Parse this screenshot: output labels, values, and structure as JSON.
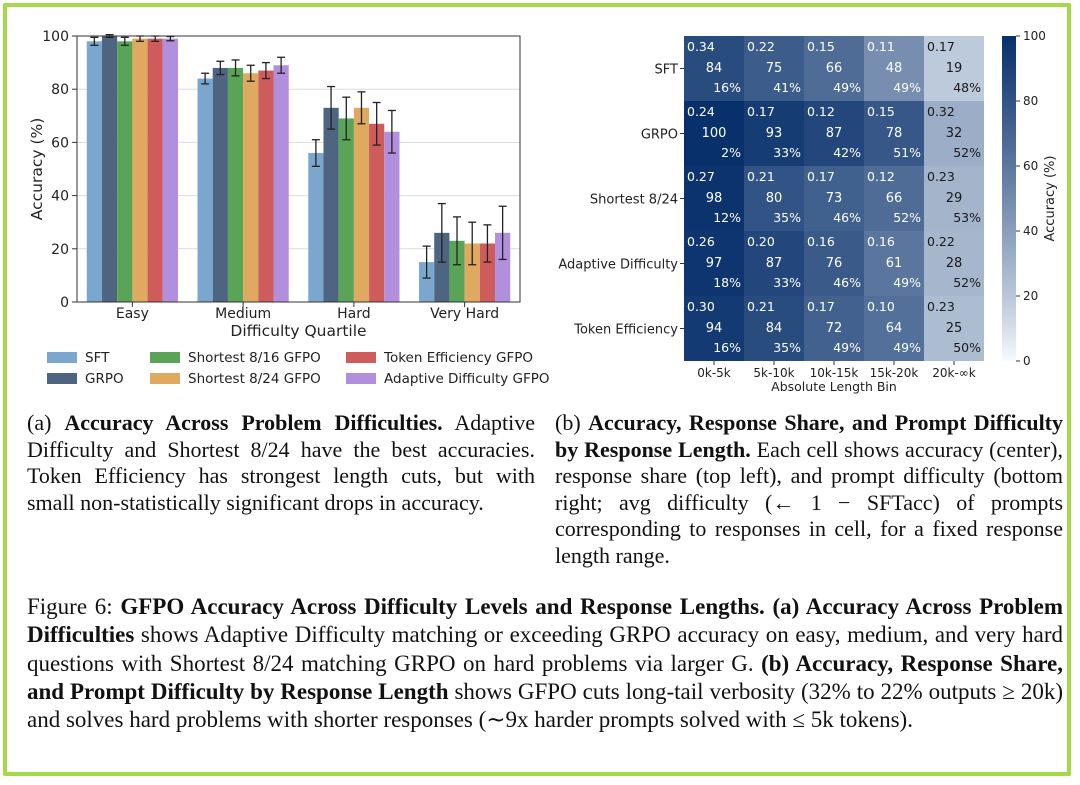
{
  "left_chart": {
    "ylabel": "Accuracy (%)",
    "xlabel": "Difficulty Quartile",
    "yticks": [
      "0",
      "20",
      "40",
      "60",
      "80",
      "100"
    ]
  },
  "heatmap": {
    "xlabel": "Absolute Length Bin",
    "colorbar_label": "Accuracy (%)",
    "colorbar_ticks": [
      "0",
      "20",
      "40",
      "60",
      "80",
      "100"
    ]
  },
  "caption_a": {
    "label": "(a) ",
    "title": "Accuracy Across Problem Difficulties.",
    "text": " Adaptive Difficulty and Shortest 8/24 have the best accuracies. Token Efficiency has strongest length cuts, but with small non-statistically significant drops in accuracy."
  },
  "caption_b": {
    "label": "(b) ",
    "title": "Accuracy, Response Share, and Prompt Difficulty by Response Length.",
    "text": " Each cell shows accuracy (center), response share (top left), and prompt difficulty (bottom right; avg difficulty (← 1 − SFTacc) of prompts corresponding to responses in cell, for a fixed response length range."
  },
  "figure_caption": {
    "label": "Figure 6: ",
    "title": "GFPO Accuracy Across Difficulty Levels and Response Lengths.",
    "part_a_title": " (a) Accuracy Across Problem Difficulties",
    "part_a_text": " shows Adaptive Difficulty matching or exceeding GRPO accuracy on easy, medium, and very hard questions with Shortest 8/24 matching GRPO on hard problems via larger G.",
    "part_b_title": " (b) Accuracy, Response Share, and Prompt Difficulty by Response Length",
    "part_b_text": " shows GFPO cuts long-tail verbosity (32% to 22% outputs ≥ 20k) and solves hard problems with shorter responses (∼9x harder prompts solved with ≤ 5k tokens)."
  },
  "chart_data": [
    {
      "type": "bar",
      "categories": [
        "Easy",
        "Medium",
        "Hard",
        "Very Hard"
      ],
      "ylabel": "Accuracy (%)",
      "xlabel": "Difficulty Quartile",
      "ylim": [
        0,
        100
      ],
      "grid": true,
      "legend_position": "bottom",
      "series": [
        {
          "name": "SFT",
          "color": "#7ba7cf",
          "values": [
            98,
            84,
            56,
            15
          ],
          "err": [
            1.5,
            2,
            5,
            6
          ]
        },
        {
          "name": "GRPO",
          "color": "#4d6580",
          "values": [
            100,
            88,
            73,
            26
          ],
          "err": [
            0.5,
            2.5,
            8,
            11
          ]
        },
        {
          "name": "Shortest 8/16 GFPO",
          "color": "#5aa457",
          "values": [
            98,
            88,
            69,
            23
          ],
          "err": [
            1.5,
            3,
            8,
            9
          ]
        },
        {
          "name": "Shortest 8/24 GFPO",
          "color": "#dfa95f",
          "values": [
            99,
            86,
            73,
            22
          ],
          "err": [
            1,
            3,
            6,
            8
          ]
        },
        {
          "name": "Token Efficiency GFPO",
          "color": "#cf5c5c",
          "values": [
            99,
            87,
            67,
            22
          ],
          "err": [
            1,
            3,
            8,
            7
          ]
        },
        {
          "name": "Adaptive Difficulty GFPO",
          "color": "#b28fdc",
          "values": [
            99,
            89,
            64,
            26
          ],
          "err": [
            0.8,
            3,
            8,
            10
          ]
        }
      ]
    },
    {
      "type": "heatmap",
      "xlabel": "Absolute Length Bin",
      "colorbar_label": "Accuracy (%)",
      "colorbar_range": [
        0,
        100
      ],
      "x": [
        "0k-5k",
        "5k-10k",
        "10k-15k",
        "15k-20k",
        "20k-∞k"
      ],
      "y": [
        "SFT",
        "GRPO",
        "Shortest 8/24",
        "Adaptive Difficulty",
        "Token Efficiency"
      ],
      "difficulty": [
        [
          "0.34",
          "0.22",
          "0.15",
          "0.11",
          "0.17"
        ],
        [
          "0.24",
          "0.17",
          "0.12",
          "0.15",
          "0.32"
        ],
        [
          "0.27",
          "0.21",
          "0.17",
          "0.12",
          "0.23"
        ],
        [
          "0.26",
          "0.20",
          "0.16",
          "0.16",
          "0.22"
        ],
        [
          "0.30",
          "0.21",
          "0.17",
          "0.10",
          "0.23"
        ]
      ],
      "accuracy": [
        [
          84,
          75,
          66,
          48,
          19
        ],
        [
          100,
          93,
          87,
          78,
          32
        ],
        [
          98,
          80,
          73,
          66,
          29
        ],
        [
          97,
          87,
          76,
          61,
          28
        ],
        [
          94,
          84,
          72,
          64,
          25
        ]
      ],
      "share": [
        [
          "16%",
          "41%",
          "49%",
          "49%",
          "48%"
        ],
        [
          "2%",
          "33%",
          "42%",
          "51%",
          "52%"
        ],
        [
          "12%",
          "35%",
          "46%",
          "52%",
          "53%"
        ],
        [
          "18%",
          "33%",
          "46%",
          "49%",
          "52%"
        ],
        [
          "16%",
          "35%",
          "49%",
          "49%",
          "50%"
        ]
      ]
    }
  ]
}
